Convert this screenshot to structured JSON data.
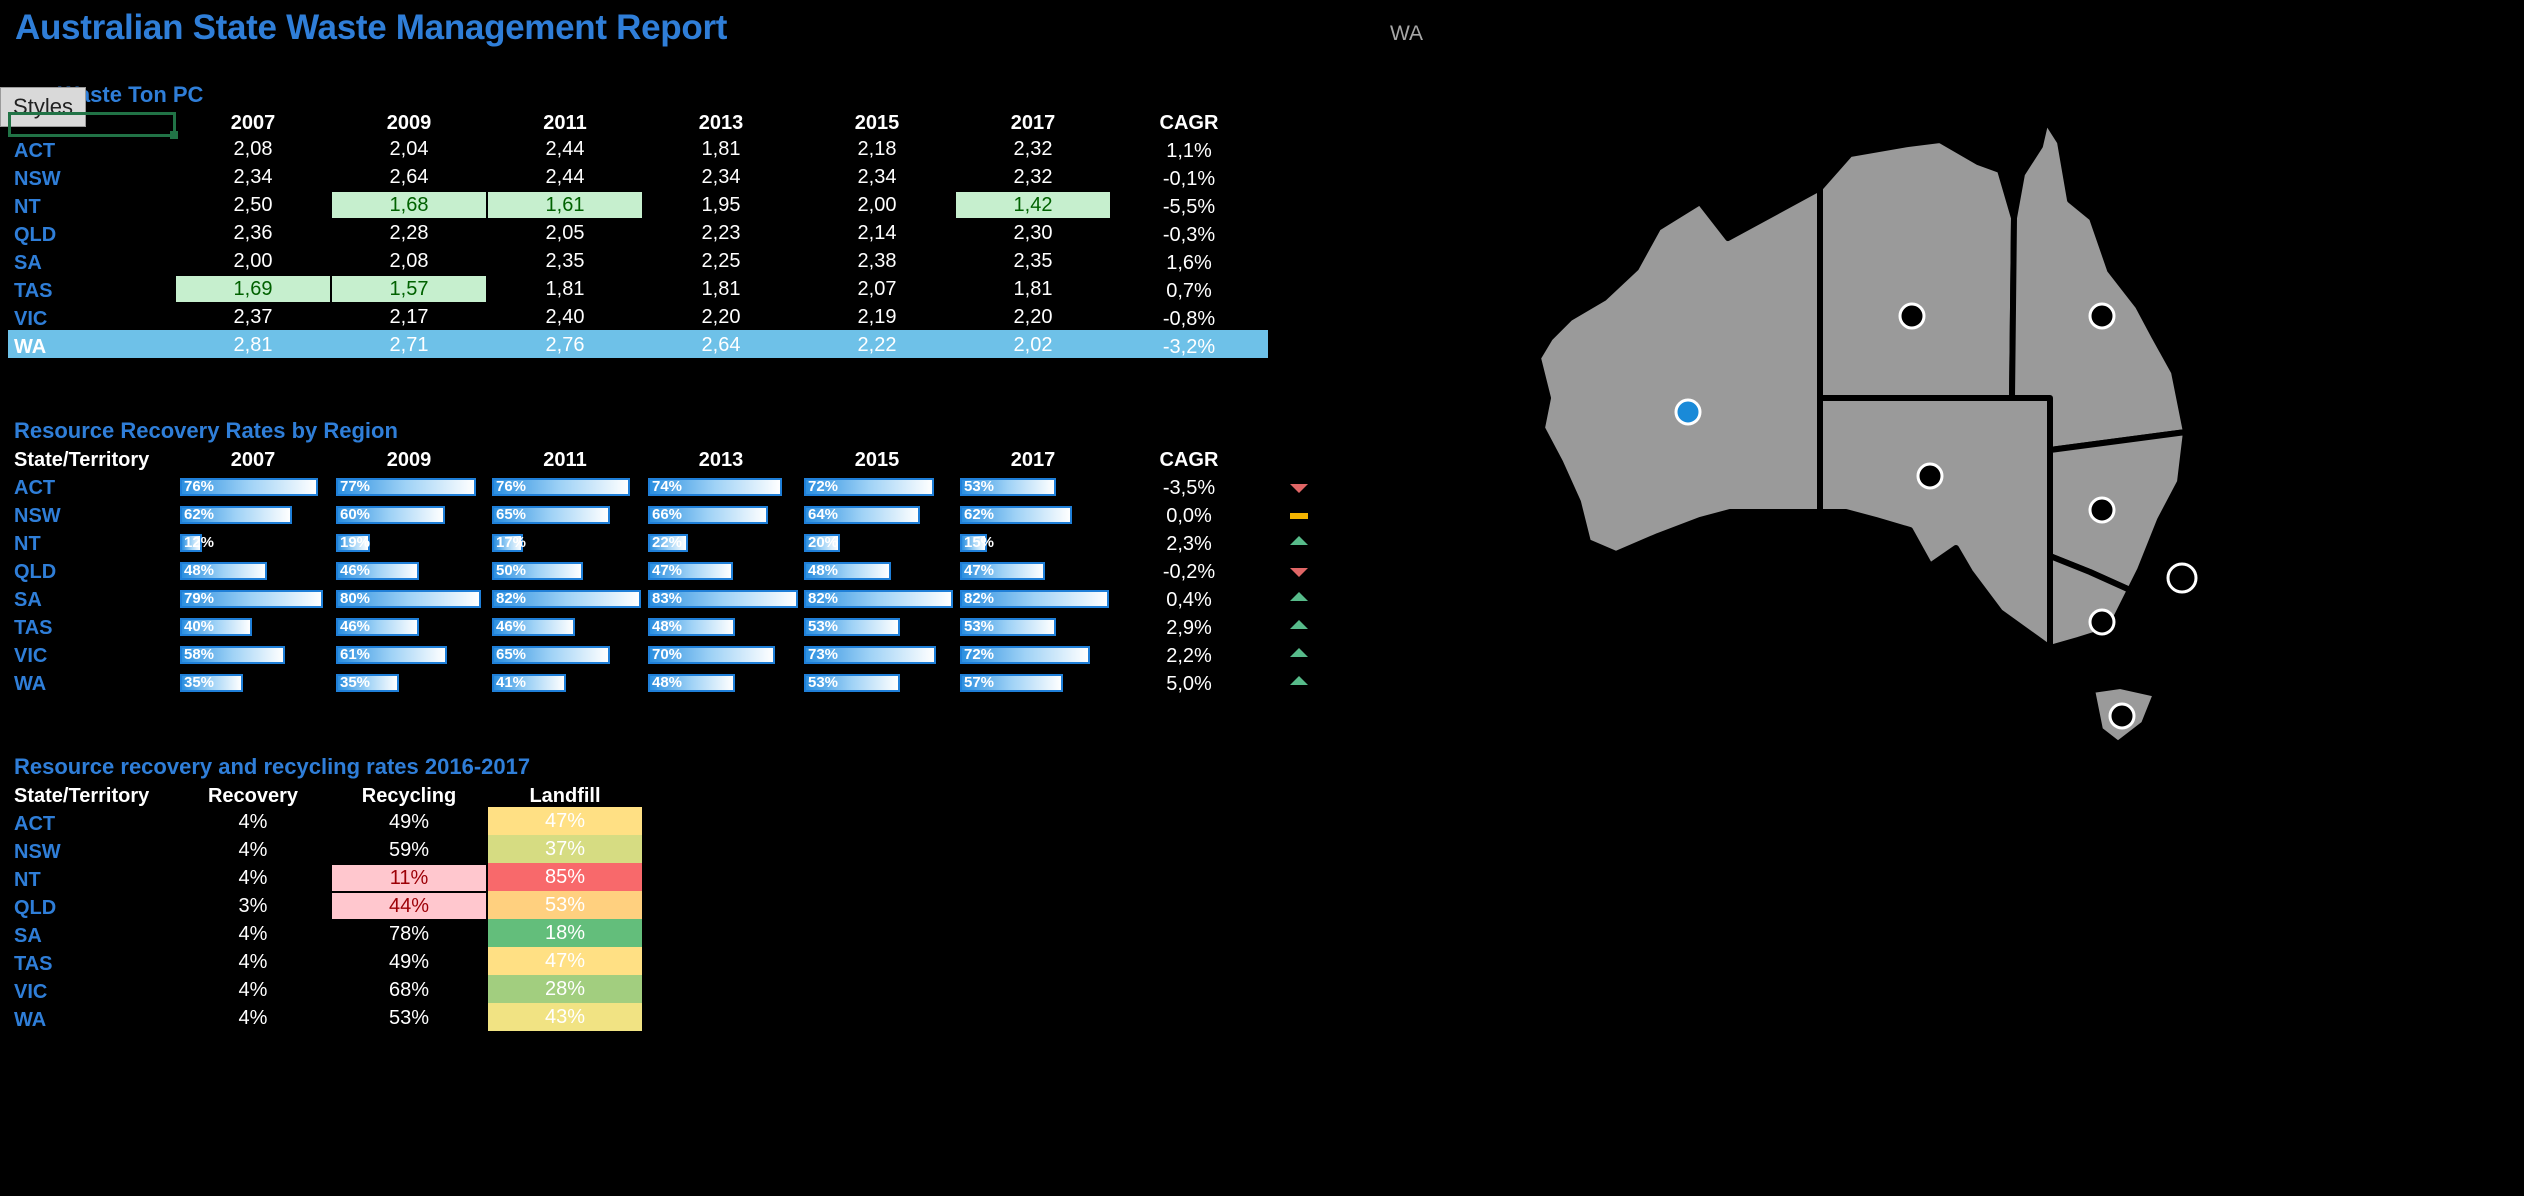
{
  "title": "Australian State Waste Management Report",
  "selected_region": "WA",
  "styles_button": "Styles",
  "waste": {
    "title": "Waste Ton PC",
    "years": [
      "2007",
      "2009",
      "2011",
      "2013",
      "2015",
      "2017"
    ],
    "cagr_label": "CAGR",
    "rows": [
      {
        "region": "ACT",
        "values": [
          "2,08",
          "2,04",
          "2,44",
          "1,81",
          "2,18",
          "2,32"
        ],
        "cagr": "1,1%"
      },
      {
        "region": "NSW",
        "values": [
          "2,34",
          "2,64",
          "2,44",
          "2,34",
          "2,34",
          "2,32"
        ],
        "cagr": "-0,1%"
      },
      {
        "region": "NT",
        "values": [
          "2,50",
          "1,68",
          "1,61",
          "1,95",
          "2,00",
          "1,42"
        ],
        "cagr": "-5,5%"
      },
      {
        "region": "QLD",
        "values": [
          "2,36",
          "2,28",
          "2,05",
          "2,23",
          "2,14",
          "2,30"
        ],
        "cagr": "-0,3%"
      },
      {
        "region": "SA",
        "values": [
          "2,00",
          "2,08",
          "2,35",
          "2,25",
          "2,38",
          "2,35"
        ],
        "cagr": "1,6%"
      },
      {
        "region": "TAS",
        "values": [
          "1,69",
          "1,57",
          "1,81",
          "1,81",
          "2,07",
          "1,81"
        ],
        "cagr": "0,7%"
      },
      {
        "region": "VIC",
        "values": [
          "2,37",
          "2,17",
          "2,40",
          "2,20",
          "2,19",
          "2,20"
        ],
        "cagr": "-0,8%"
      },
      {
        "region": "WA",
        "values": [
          "2,81",
          "2,71",
          "2,76",
          "2,64",
          "2,22",
          "2,02"
        ],
        "cagr": "-3,2%"
      }
    ]
  },
  "recovery": {
    "title": "Resource Recovery Rates by Region",
    "col_label": "State/Territory",
    "years": [
      "2007",
      "2009",
      "2011",
      "2013",
      "2015",
      "2017"
    ],
    "cagr_label": "CAGR",
    "rows": [
      {
        "region": "ACT",
        "values": [
          76,
          77,
          76,
          74,
          72,
          53
        ],
        "cagr": "-3,5%",
        "trend": "down"
      },
      {
        "region": "NSW",
        "values": [
          62,
          60,
          65,
          66,
          64,
          62
        ],
        "cagr": "0,0%",
        "trend": "flat"
      },
      {
        "region": "NT",
        "values": [
          12,
          19,
          17,
          22,
          20,
          15
        ],
        "cagr": "2,3%",
        "trend": "up"
      },
      {
        "region": "QLD",
        "values": [
          48,
          46,
          50,
          47,
          48,
          47
        ],
        "cagr": "-0,2%",
        "trend": "down"
      },
      {
        "region": "SA",
        "values": [
          79,
          80,
          82,
          83,
          82,
          82
        ],
        "cagr": "0,4%",
        "trend": "up"
      },
      {
        "region": "TAS",
        "values": [
          40,
          46,
          46,
          48,
          53,
          53
        ],
        "cagr": "2,9%",
        "trend": "up"
      },
      {
        "region": "VIC",
        "values": [
          58,
          61,
          65,
          70,
          73,
          72
        ],
        "cagr": "2,2%",
        "trend": "up"
      },
      {
        "region": "WA",
        "values": [
          35,
          35,
          41,
          48,
          53,
          57
        ],
        "cagr": "5,0%",
        "trend": "up"
      }
    ]
  },
  "recycling": {
    "title": "Resource recovery and recycling rates 2016-2017",
    "col_label": "State/Territory",
    "headers": [
      "Recovery",
      "Recycling",
      "Landfill"
    ],
    "rows": [
      {
        "region": "ACT",
        "recovery": "4%",
        "recycling": "49%",
        "landfill": "47%",
        "lf_color": "#ffe084"
      },
      {
        "region": "NSW",
        "recovery": "4%",
        "recycling": "59%",
        "landfill": "37%",
        "lf_color": "#d6dc82"
      },
      {
        "region": "NT",
        "recovery": "4%",
        "recycling": "11%",
        "landfill": "85%",
        "lf_color": "#f8696b"
      },
      {
        "region": "QLD",
        "recovery": "3%",
        "recycling": "44%",
        "landfill": "53%",
        "lf_color": "#ffd07f"
      },
      {
        "region": "SA",
        "recovery": "4%",
        "recycling": "78%",
        "landfill": "18%",
        "lf_color": "#63be7b"
      },
      {
        "region": "TAS",
        "recovery": "4%",
        "recycling": "49%",
        "landfill": "47%",
        "lf_color": "#ffe084"
      },
      {
        "region": "VIC",
        "recovery": "4%",
        "recycling": "68%",
        "landfill": "28%",
        "lf_color": "#a2ce7f"
      },
      {
        "region": "WA",
        "recovery": "4%",
        "recycling": "53%",
        "landfill": "43%",
        "lf_color": "#f1e383"
      }
    ]
  }
}
